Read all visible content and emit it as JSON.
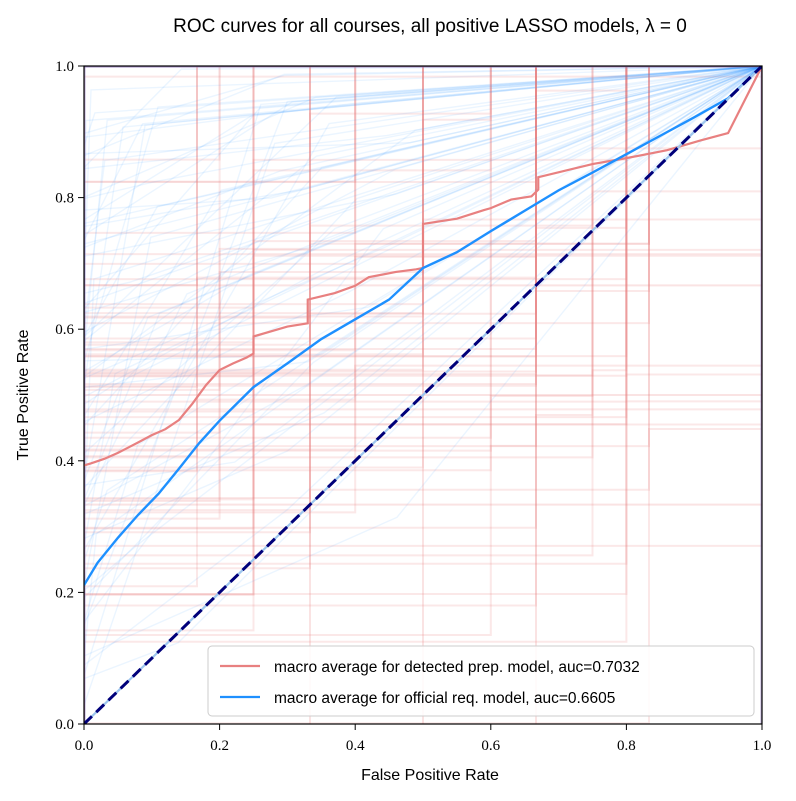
{
  "chart_data": {
    "type": "line",
    "title": "ROC curves for all courses, all positive LASSO models, λ = 0",
    "xlabel": "False Positive Rate",
    "ylabel": "True Positive Rate",
    "xlim": [
      0,
      1.0
    ],
    "ylim": [
      0,
      1.0
    ],
    "xticks": [
      "0.0",
      "0.2",
      "0.4",
      "0.6",
      "0.8",
      "1.0"
    ],
    "yticks": [
      "0.0",
      "0.2",
      "0.4",
      "0.6",
      "0.8",
      "1.0"
    ],
    "grid": false,
    "legend_position": "bottom-right",
    "colors": {
      "detected": "#e88080",
      "official": "#1e90ff",
      "diagonal": "#00007a",
      "axis": "#000000"
    },
    "series": [
      {
        "name": "macro average for detected prep. model, auc=0.7032",
        "x": [
          0.0,
          0.01,
          0.03,
          0.05,
          0.08,
          0.1,
          0.12,
          0.14,
          0.16,
          0.18,
          0.2,
          0.22,
          0.24,
          0.25,
          0.25,
          0.3,
          0.33,
          0.33,
          0.37,
          0.4,
          0.42,
          0.46,
          0.49,
          0.5,
          0.5,
          0.55,
          0.59,
          0.6,
          0.63,
          0.66,
          0.67,
          0.67,
          0.75,
          0.8,
          0.86,
          0.91,
          0.95,
          1.0
        ],
        "values": [
          0.393,
          0.396,
          0.403,
          0.412,
          0.428,
          0.439,
          0.448,
          0.462,
          0.487,
          0.515,
          0.538,
          0.548,
          0.557,
          0.563,
          0.589,
          0.604,
          0.609,
          0.645,
          0.655,
          0.666,
          0.679,
          0.687,
          0.691,
          0.693,
          0.76,
          0.768,
          0.781,
          0.784,
          0.797,
          0.802,
          0.812,
          0.831,
          0.851,
          0.86,
          0.872,
          0.887,
          0.898,
          1.0
        ]
      },
      {
        "name": "macro average for official req. model, auc=0.6605",
        "x": [
          0.0,
          0.02,
          0.05,
          0.08,
          0.11,
          0.14,
          0.17,
          0.2,
          0.25,
          0.3,
          0.35,
          0.4,
          0.45,
          0.5,
          0.55,
          0.6,
          0.65,
          0.7,
          0.75,
          0.8,
          0.85,
          0.9,
          0.95,
          1.0
        ],
        "values": [
          0.211,
          0.245,
          0.283,
          0.318,
          0.35,
          0.388,
          0.427,
          0.461,
          0.512,
          0.548,
          0.585,
          0.615,
          0.645,
          0.693,
          0.717,
          0.749,
          0.78,
          0.811,
          0.838,
          0.866,
          0.894,
          0.922,
          0.951,
          1.0
        ]
      },
      {
        "x": [
          0.0,
          1.0
        ],
        "values": [
          0.0,
          1.0
        ]
      }
    ]
  }
}
